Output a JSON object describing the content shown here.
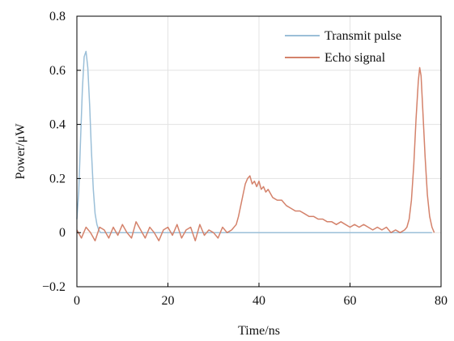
{
  "chart_data": {
    "type": "line",
    "xlabel": "Time/ns",
    "ylabel": "Power/μW",
    "xlim": [
      0,
      80
    ],
    "ylim": [
      -0.2,
      0.8
    ],
    "x_ticks": [
      0,
      20,
      40,
      60,
      80
    ],
    "x_tick_labels": [
      "0",
      "20",
      "40",
      "60",
      "80"
    ],
    "y_ticks": [
      -0.2,
      0,
      0.2,
      0.4,
      0.6,
      0.8
    ],
    "y_tick_labels": [
      "−0.2",
      "0",
      "0.2",
      "0.4",
      "0.6",
      "0.8"
    ],
    "grid": true,
    "legend_position": "top-right",
    "series": [
      {
        "name": "Transmit pulse",
        "color": "#9bbfd8",
        "x": [
          0,
          0.4,
          0.8,
          1.2,
          1.6,
          2.0,
          2.4,
          2.8,
          3.2,
          3.6,
          4.0,
          4.4,
          4.8,
          5.2,
          5.6,
          6,
          10,
          20,
          30,
          40,
          50,
          60,
          70,
          78
        ],
        "y": [
          0.05,
          0.15,
          0.34,
          0.53,
          0.65,
          0.67,
          0.61,
          0.47,
          0.3,
          0.16,
          0.07,
          0.03,
          0.01,
          0.0,
          0.0,
          0,
          0,
          0,
          0,
          0,
          0,
          0,
          0,
          0
        ]
      },
      {
        "name": "Echo signal",
        "color": "#d4826b",
        "x": [
          0,
          1,
          2,
          3,
          4,
          5,
          6,
          7,
          8,
          9,
          10,
          11,
          12,
          13,
          14,
          15,
          16,
          17,
          18,
          19,
          20,
          21,
          22,
          23,
          24,
          25,
          26,
          27,
          28,
          29,
          30,
          31,
          32,
          33,
          34,
          35,
          35.5,
          36,
          36.5,
          37,
          37.5,
          38,
          38.5,
          39,
          39.5,
          40,
          40.5,
          41,
          41.5,
          42,
          43,
          44,
          45,
          46,
          47,
          48,
          49,
          50,
          51,
          52,
          53,
          54,
          55,
          56,
          57,
          58,
          59,
          60,
          61,
          62,
          63,
          64,
          65,
          66,
          67,
          68,
          69,
          70,
          71,
          72,
          72.5,
          73,
          73.5,
          74,
          74.5,
          75,
          75.3,
          75.6,
          76,
          76.5,
          77,
          77.5,
          78,
          78.5
        ],
        "y": [
          0.01,
          -0.02,
          0.02,
          0.0,
          -0.03,
          0.02,
          0.01,
          -0.02,
          0.02,
          -0.01,
          0.03,
          0.0,
          -0.02,
          0.04,
          0.01,
          -0.02,
          0.02,
          0.0,
          -0.03,
          0.01,
          0.02,
          -0.01,
          0.03,
          -0.02,
          0.01,
          0.02,
          -0.03,
          0.03,
          -0.01,
          0.01,
          0.0,
          -0.02,
          0.02,
          0.0,
          0.01,
          0.03,
          0.06,
          0.1,
          0.14,
          0.18,
          0.2,
          0.21,
          0.18,
          0.19,
          0.17,
          0.19,
          0.16,
          0.17,
          0.15,
          0.16,
          0.13,
          0.12,
          0.12,
          0.1,
          0.09,
          0.08,
          0.08,
          0.07,
          0.06,
          0.06,
          0.05,
          0.05,
          0.04,
          0.04,
          0.03,
          0.04,
          0.03,
          0.02,
          0.03,
          0.02,
          0.03,
          0.02,
          0.01,
          0.02,
          0.01,
          0.02,
          0.0,
          0.01,
          0.0,
          0.01,
          0.02,
          0.05,
          0.12,
          0.25,
          0.42,
          0.56,
          0.61,
          0.58,
          0.45,
          0.28,
          0.14,
          0.06,
          0.02,
          0.0
        ]
      }
    ]
  }
}
